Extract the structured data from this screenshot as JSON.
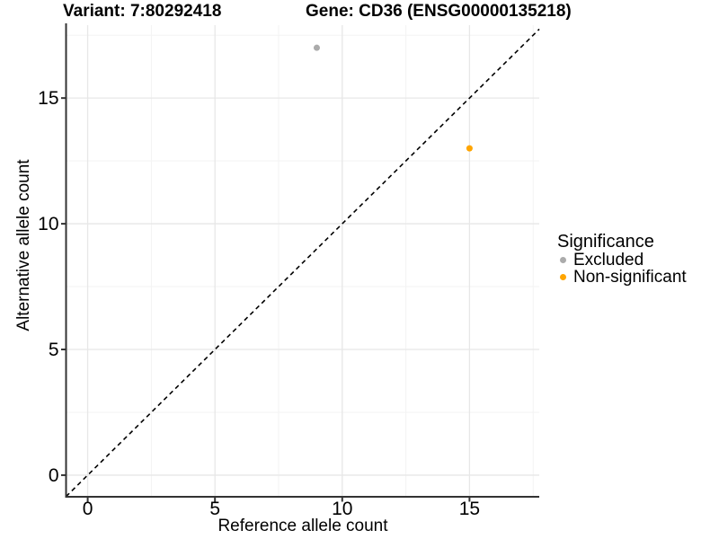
{
  "header": {
    "title_left": "Variant: 7:80292418",
    "title_right": "Gene: CD36 (ENSG00000135218)"
  },
  "axes": {
    "x_title": "Reference allele count",
    "y_title": "Alternative allele count"
  },
  "legend": {
    "title": "Significance",
    "items": [
      {
        "label": "Excluded",
        "color": "#ababab"
      },
      {
        "label": "Non-significant",
        "color": "#ffa500"
      }
    ]
  },
  "chart_data": {
    "type": "scatter",
    "title": "Variant: 7:80292418 / Gene: CD36 (ENSG00000135218)",
    "xlabel": "Reference allele count",
    "ylabel": "Alternative allele count",
    "xlim": [
      -0.85,
      17.74
    ],
    "ylim": [
      -0.86,
      17.9
    ],
    "x_ticks": [
      0,
      5,
      10,
      15
    ],
    "y_ticks": [
      0,
      5,
      10,
      15
    ],
    "x_minor_ticks": [
      2.5,
      7.5,
      12.5,
      17.5
    ],
    "y_minor_ticks": [
      2.5,
      7.5,
      12.5,
      17.5
    ],
    "grid": "major+minor",
    "legend_position": "right",
    "legend_title": "Significance",
    "reference_line": {
      "type": "identity",
      "equation": "y = x",
      "style": "dashed",
      "color": "#000000"
    },
    "series": [
      {
        "name": "Excluded",
        "color": "#ababab",
        "points": [
          {
            "x": 9,
            "y": 17
          }
        ]
      },
      {
        "name": "Non-significant",
        "color": "#ffa500",
        "points": [
          {
            "x": 15,
            "y": 13
          }
        ]
      }
    ]
  },
  "style": {
    "axis_color": "#333333",
    "grid_major_color": "#e7e7e7",
    "grid_minor_color": "#f3f3f3",
    "point_radius": 3.5,
    "background": "#ffffff"
  }
}
